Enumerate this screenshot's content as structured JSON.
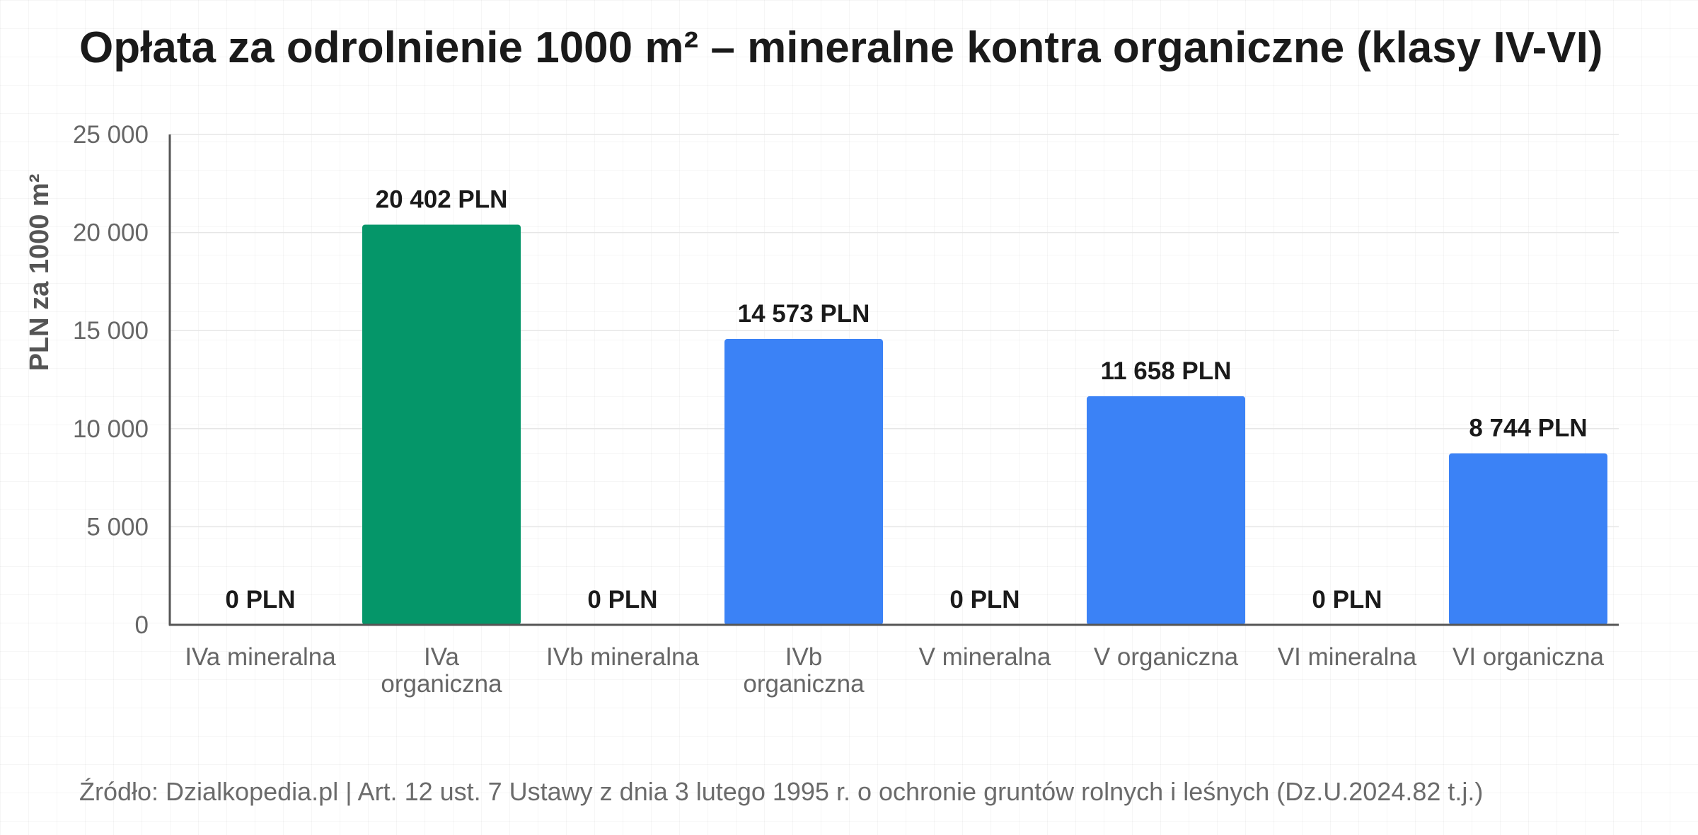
{
  "chart_data": {
    "type": "bar",
    "title": "Opłata za odrolnienie 1000 m² – mineralne kontra organiczne (klasy IV-VI)",
    "ylabel": "PLN za 1000 m²",
    "xlabel": "",
    "ylim": [
      0,
      25000
    ],
    "yticks": [
      0,
      5000,
      10000,
      15000,
      20000,
      25000
    ],
    "ytick_labels": [
      "0",
      "5 000",
      "10 000",
      "15 000",
      "20 000",
      "25 000"
    ],
    "grid": true,
    "categories": [
      [
        "IVa mineralna"
      ],
      [
        "IVa",
        "organiczna"
      ],
      [
        "IVb mineralna"
      ],
      [
        "IVb",
        "organiczna"
      ],
      [
        "V mineralna"
      ],
      [
        "V organiczna"
      ],
      [
        "VI mineralna"
      ],
      [
        "VI organiczna"
      ]
    ],
    "values": [
      0,
      20402,
      0,
      14573,
      0,
      11658,
      0,
      8744
    ],
    "data_labels": [
      "0 PLN",
      "20 402 PLN",
      "0 PLN",
      "14 573 PLN",
      "0 PLN",
      "11 658 PLN",
      "0 PLN",
      "8 744 PLN"
    ],
    "bar_colors": [
      "#3b82f6",
      "#059669",
      "#3b82f6",
      "#3b82f6",
      "#3b82f6",
      "#3b82f6",
      "#3b82f6",
      "#3b82f6"
    ]
  },
  "source": "Źródło: Dzialkopedia.pl | Art. 12 ust. 7 Ustawy z dnia 3 lutego 1995 r. o ochronie gruntów rolnych i leśnych (Dz.U.2024.82 t.j.)",
  "colors": {
    "axis": "#555555",
    "grid": "#e6e6e6",
    "title": "#1a1a1a",
    "muted_text": "#666666"
  }
}
